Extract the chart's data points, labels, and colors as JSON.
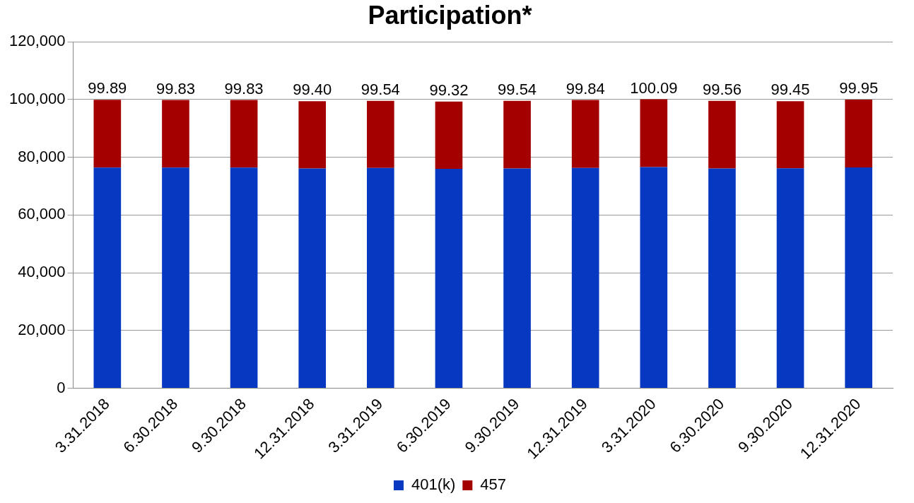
{
  "chart_data": {
    "type": "bar",
    "title": "Participation*",
    "stacked": true,
    "categories": [
      "3.31.2018",
      "6.30.2018",
      "9.30.2018",
      "12.31.2018",
      "3.31.2019",
      "6.30.2019",
      "9.30.2019",
      "12.31.2019",
      "3.31.2020",
      "6.30.2020",
      "9.30.2020",
      "12.31.2020"
    ],
    "series": [
      {
        "name": "401(k)",
        "color": "#0638c1",
        "values": [
          76400,
          76400,
          76400,
          76100,
          76300,
          76000,
          76100,
          76300,
          76600,
          76100,
          76200,
          76500
        ]
      },
      {
        "name": "457",
        "color": "#a50000",
        "values": [
          23490,
          23430,
          23430,
          23300,
          23240,
          23320,
          23440,
          23540,
          23490,
          23460,
          23250,
          23450
        ]
      }
    ],
    "annotations": [
      {
        "text": "99.89",
        "x": "3.31.2018",
        "y": 99890
      },
      {
        "text": "99.83",
        "x": "6.30.2018",
        "y": 99830
      },
      {
        "text": "99.83",
        "x": "9.30.2018",
        "y": 99830
      },
      {
        "text": "99.40",
        "x": "12.31.2018",
        "y": 99400
      },
      {
        "text": "99.54",
        "x": "3.31.2019",
        "y": 99540
      },
      {
        "text": "99.32",
        "x": "6.30.2019",
        "y": 99320
      },
      {
        "text": "99.54",
        "x": "9.30.2019",
        "y": 99540
      },
      {
        "text": "99.84",
        "x": "12.31.2019",
        "y": 99840
      },
      {
        "text": "100.09",
        "x": "3.31.2020",
        "y": 100090
      },
      {
        "text": "99.56",
        "x": "6.30.2020",
        "y": 99560
      },
      {
        "text": "99.45",
        "x": "9.30.2020",
        "y": 99450
      },
      {
        "text": "99.95",
        "x": "12.31.2020",
        "y": 99950
      }
    ],
    "ylim": [
      0,
      120000
    ],
    "yticks": [
      {
        "value": 0,
        "label": "0"
      },
      {
        "value": 20000,
        "label": "20,000"
      },
      {
        "value": 40000,
        "label": "40,000"
      },
      {
        "value": 60000,
        "label": "60,000"
      },
      {
        "value": 80000,
        "label": "80,000"
      },
      {
        "value": 100000,
        "label": "100,000"
      },
      {
        "value": 120000,
        "label": "120,000"
      }
    ],
    "grid": "y",
    "legend": "bottom"
  }
}
